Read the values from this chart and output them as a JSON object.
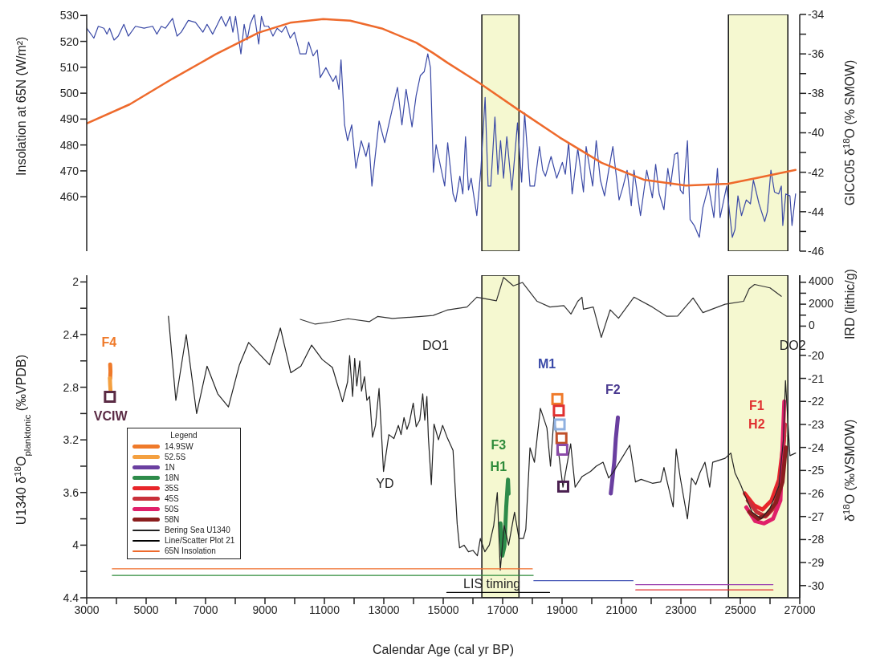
{
  "chart_data": [
    {
      "type": "line",
      "ylabel": "Insolation at 65N (W/m²)",
      "y2label": "GICC05 δ$^{18}$O (% SMOW)",
      "tick_labels": "y",
      "xlim": [
        3000,
        27000
      ],
      "ylim": [
        439,
        530.4
      ],
      "yticks": [
        460,
        470,
        480,
        490,
        500,
        510,
        520,
        530
      ],
      "y2lim": [
        -46,
        -34
      ],
      "y2ticks": [
        -46,
        {
          "value": -45,
          "label": null
        },
        -44,
        {
          "value": -43,
          "label": null
        },
        -42,
        {
          "value": -41,
          "label": null
        },
        -40,
        {
          "value": -39,
          "label": null
        },
        -38,
        {
          "value": -37,
          "label": null
        },
        -36,
        {
          "value": -35,
          "label": null
        },
        -34
      ],
      "bands": [
        {
          "axis": "x",
          "from": 16300,
          "to": 17550,
          "color": "#f5f8d0"
        },
        {
          "axis": "x",
          "from": 24600,
          "to": 26600,
          "color": "#f5f8d0"
        }
      ],
      "series": [
        {
          "color": "#3a49a6",
          "axis": "y2",
          "x": [
            3000,
            3240,
            3390,
            3580,
            3680,
            3770,
            3920,
            4060,
            4250,
            4400,
            4640,
            4930,
            5220,
            5360,
            5510,
            5650,
            5890,
            6040,
            6180,
            6420,
            6660,
            6910,
            7050,
            7240,
            7530,
            7680,
            7820,
            7920,
            8010,
            8190,
            8300,
            8400,
            8500,
            8640,
            8790,
            8880,
            8980,
            9120,
            9270,
            9410,
            9560,
            9700,
            9850,
            9990,
            10180,
            10380,
            10470,
            10620,
            10760,
            10860,
            11050,
            11290,
            11390,
            11490,
            11560,
            11680,
            11780,
            11920,
            12060,
            12240,
            12400,
            12500,
            12600,
            12840,
            13030,
            13270,
            13460,
            13610,
            13750,
            13950,
            14090,
            14230,
            14360,
            14480,
            14570,
            14670,
            14760,
            14910,
            15050,
            15150,
            15330,
            15420,
            15560,
            15660,
            15750,
            15850,
            15940,
            16130,
            16270,
            16410,
            16510,
            16600,
            16740,
            16840,
            16930,
            17030,
            17140,
            17310,
            17500,
            17640,
            17740,
            17920,
            18070,
            18240,
            18350,
            18440,
            18630,
            18820,
            19010,
            19110,
            19220,
            19340,
            19530,
            19720,
            19810,
            20030,
            20150,
            20290,
            20430,
            20570,
            20710,
            20920,
            21040,
            21190,
            21330,
            21420,
            21640,
            21850,
            22040,
            22150,
            22270,
            22430,
            22560,
            22650,
            22790,
            22890,
            22980,
            23080,
            23220,
            23310,
            23450,
            23620,
            23740,
            23930,
            24110,
            24230,
            24320,
            24540,
            24730,
            24820,
            24920,
            25040,
            25200,
            25340,
            25440,
            25630,
            25820,
            25910,
            26030,
            26150,
            26290,
            26380,
            26430,
            26530,
            26670,
            26740,
            26860
          ],
          "values": [
            -34.7,
            -35.2,
            -34.6,
            -34.7,
            -35.0,
            -34.7,
            -35.3,
            -35.1,
            -34.5,
            -35.1,
            -34.6,
            -34.7,
            -34.6,
            -35.0,
            -34.6,
            -34.7,
            -34.2,
            -35.1,
            -34.9,
            -34.3,
            -34.4,
            -34.9,
            -34.5,
            -35.0,
            -34.1,
            -34.6,
            -34.1,
            -34.9,
            -34.1,
            -36.0,
            -34.5,
            -35.3,
            -34.5,
            -34.0,
            -35.5,
            -34.1,
            -34.6,
            -34.6,
            -35.1,
            -34.7,
            -34.9,
            -34.6,
            -35.2,
            -34.9,
            -36.0,
            -36.0,
            -35.4,
            -36.1,
            -35.8,
            -37.2,
            -36.7,
            -37.4,
            -37.1,
            -37.8,
            -36.3,
            -39.6,
            -40.4,
            -39.6,
            -41.8,
            -40.4,
            -41.2,
            -40.5,
            -42.7,
            -39.4,
            -40.5,
            -38.9,
            -37.7,
            -39.6,
            -37.8,
            -39.7,
            -38.1,
            -37.1,
            -36.9,
            -36.0,
            -36.7,
            -42.0,
            -40.6,
            -41.7,
            -42.7,
            -40.5,
            -43.1,
            -43.5,
            -42.2,
            -43.1,
            -40.2,
            -42.9,
            -42.3,
            -44.2,
            -41.8,
            -38.2,
            -42.7,
            -42.7,
            -39.2,
            -42.1,
            -40.4,
            -42.3,
            -40.2,
            -42.9,
            -39.5,
            -42.5,
            -39.0,
            -42.7,
            -42.7,
            -40.7,
            -41.9,
            -42.2,
            -41.2,
            -42.3,
            -41.5,
            -42.1,
            -40.5,
            -43.1,
            -40.8,
            -43.0,
            -40.7,
            -42.7,
            -40.4,
            -42.4,
            -43.2,
            -41.9,
            -40.7,
            -43.4,
            -42.8,
            -41.9,
            -43.7,
            -41.9,
            -44.2,
            -41.9,
            -43.3,
            -41.6,
            -43.1,
            -43.9,
            -41.8,
            -42.7,
            -41.1,
            -41.0,
            -42.9,
            -43.1,
            -40.4,
            -44.4,
            -44.7,
            -45.3,
            -43.8,
            -42.7,
            -44.3,
            -41.8,
            -44.3,
            -42.7,
            -45.3,
            -44.9,
            -43.2,
            -44.2,
            -43.4,
            -43.6,
            -42.4,
            -43.6,
            -44.5,
            -44.0,
            -41.9,
            -43.0,
            -43.1,
            -42.7,
            -44.7,
            -43.1,
            -43.2,
            -44.7,
            -43.1
          ]
        },
        {
          "name": "65N Insolation",
          "color": "#ee6a2c",
          "axis": "y",
          "x": [
            3000,
            4450,
            5890,
            7340,
            8790,
            9850,
            10960,
            11870,
            12930,
            14090,
            14660,
            15150,
            16220,
            17500,
            18920,
            20330,
            21750,
            23170,
            24590,
            25530,
            26860
          ],
          "values": [
            488.3,
            495.7,
            505.6,
            515.0,
            523.4,
            527.2,
            528.6,
            528.0,
            525.0,
            519.5,
            515.5,
            511.7,
            503.9,
            493.8,
            482.9,
            473.1,
            466.6,
            464.3,
            465.0,
            467.2,
            470.4
          ]
        }
      ]
    },
    {
      "type": "line",
      "xlabel": "Calendar Age (cal yr BP)",
      "ylabel": "U1340 δ$^{18}$O$_{planktonic}$ (‰VPDB)",
      "y2label": "δ$^{18}$O (‰VSMOW)",
      "y3label": "IRD (lithic/g)",
      "legend": "bottom left",
      "legend_title": "Legend",
      "xlim": [
        3000,
        27000
      ],
      "xticks": [
        3000,
        {
          "value": 4000,
          "label": null
        },
        5000,
        {
          "value": 6000,
          "label": null
        },
        7000,
        {
          "value": 8000,
          "label": null
        },
        9000,
        {
          "value": 10000,
          "label": null
        },
        11000,
        {
          "value": 12000,
          "label": null
        },
        13000,
        {
          "value": 14000,
          "label": null
        },
        15000,
        {
          "value": 16000,
          "label": null
        },
        17000,
        {
          "value": 18000,
          "label": null
        },
        19000,
        {
          "value": 20000,
          "label": null
        },
        21000,
        {
          "value": 22000,
          "label": null
        },
        23000,
        {
          "value": 24000,
          "label": null
        },
        25000,
        {
          "value": 26000,
          "label": null
        },
        27000
      ],
      "ylim": [
        4.4,
        1.949
      ],
      "yticks": [
        2,
        {
          "value": 2.2,
          "label": null
        },
        2.4,
        {
          "value": 2.6,
          "label": null
        },
        2.8,
        {
          "value": 3,
          "label": null
        },
        3.2,
        {
          "value": 3.4,
          "label": null
        },
        3.6,
        {
          "value": 3.8,
          "label": null
        },
        4,
        {
          "value": 4.2,
          "label": null
        },
        4.4
      ],
      "y2lim": [
        -30.53,
        -16.52
      ],
      "y2ticks": [
        -30,
        -29,
        -28,
        -27,
        -26,
        -25,
        -24,
        -23,
        -22,
        -21,
        -20
      ],
      "y3lim": [
        -24770,
        4640
      ],
      "y3ticks": [
        0,
        {
          "value": 1000,
          "label": null
        },
        2000,
        {
          "value": 3000,
          "label": null
        },
        4000
      ],
      "bands": [
        {
          "axis": "x",
          "from": 16300,
          "to": 17550,
          "color": "#f5f8d0"
        },
        {
          "axis": "x",
          "from": 24600,
          "to": 26600,
          "color": "#f5f8d0"
        }
      ],
      "annotations": [
        "F4",
        "VCIW",
        "DO1",
        "YD",
        "M1",
        "F2",
        "F3",
        "H1",
        "F1",
        "H2",
        "DO2",
        "LIS timing"
      ],
      "series": [
        {
          "name": "14.9SW",
          "color": "#ef7a2a",
          "axis": "y2",
          "x": [
            3790,
            3800,
            3790
          ],
          "values": [
            -20.4,
            -20.7,
            -21.0
          ]
        },
        {
          "name": "52.5S",
          "color": "#f4a040",
          "axis": "y2",
          "x": [
            3780,
            3790,
            3800
          ],
          "values": [
            -21.0,
            -21.3,
            -21.5
          ]
        },
        {
          "name": "1N",
          "color": "#6a3fa0",
          "axis": "y2",
          "x": [
            20640,
            20760,
            20810,
            20880
          ],
          "values": [
            -26.0,
            -24.6,
            -23.6,
            -22.7
          ]
        },
        {
          "name": "18N",
          "color": "#2e8b4a",
          "axis": "y2",
          "x": [
            16930,
            16990,
            17060,
            17120,
            17180,
            17200
          ],
          "values": [
            -27.3,
            -28.7,
            -28.3,
            -26.6,
            -25.4,
            -26.0
          ]
        },
        {
          "name": "35S",
          "color": "#e8252a",
          "axis": "y2",
          "x": [
            25150,
            25450,
            25750,
            26050,
            26300,
            26480
          ],
          "values": [
            -26.0,
            -26.5,
            -26.7,
            -26.3,
            -25.4,
            -23.5
          ]
        },
        {
          "name": "45S",
          "color": "#c8303a",
          "axis": "y2",
          "x": [
            25250,
            25550,
            25850,
            26150,
            26400,
            26500
          ],
          "values": [
            -26.3,
            -26.8,
            -27.0,
            -26.6,
            -25.0,
            -23.0
          ]
        },
        {
          "name": "50S",
          "color": "#e0206a",
          "axis": "y2",
          "x": [
            25200,
            25500,
            25800,
            26100,
            26350,
            26480
          ],
          "values": [
            -26.6,
            -27.2,
            -27.3,
            -27.1,
            -26.3,
            -22.0
          ]
        },
        {
          "name": "58N",
          "color": "#8b1e1e",
          "axis": "y2",
          "x": [
            25300,
            25600,
            25900,
            26200,
            26420,
            26530
          ],
          "values": [
            -26.8,
            -27.1,
            -26.9,
            -26.4,
            -25.5,
            -24.0
          ]
        },
        {
          "type": "scatter",
          "marker": "square",
          "axis": "y2",
          "x": [
            3780,
            18840,
            18890,
            18920,
            18980,
            19010,
            19040
          ],
          "values": [
            -21.8,
            -21.9,
            -22.4,
            -23.0,
            -23.6,
            -24.1,
            -25.7
          ],
          "colors": [
            "#5a2a44",
            "#ef7a2a",
            "#e03030",
            "#8fb0e0",
            "#c0502a",
            "#8a4aa8",
            "#4a2050"
          ]
        },
        {
          "name": "Bering Sea U1340",
          "color": "#222222",
          "axis": "y",
          "x": [
            5750,
            6000,
            6350,
            6700,
            7050,
            7410,
            7770,
            8140,
            8450,
            9150,
            9520,
            9870,
            10210,
            10570,
            10930,
            11270,
            11610,
            11780,
            11850,
            11950,
            12020,
            12090,
            12190,
            12250,
            12350,
            12430,
            12520,
            12620,
            12720,
            12840,
            12990,
            13170,
            13340,
            13490,
            13580,
            13680,
            13780,
            13870,
            13990,
            14090,
            14210,
            14310,
            14380,
            14450,
            14500,
            14600,
            14690,
            14840,
            14980,
            15130,
            15330,
            15470,
            15550,
            15700,
            15850,
            16000,
            16150,
            16250,
            16400,
            16550,
            16700,
            16820,
            16920,
            17050,
            17200,
            17400,
            17550,
            17700,
            17780,
            17920,
            18070,
            18270,
            18490,
            18610,
            18730,
            19030,
            19290,
            19440,
            19670,
            19960,
            20150,
            20380,
            20570,
            20710,
            21280,
            21470,
            21660,
            22040,
            22320,
            22430,
            22560,
            22740,
            22840,
            22980,
            23220,
            23360,
            23500,
            23640,
            23810,
            23970,
            24070,
            24490,
            24680,
            24820,
            25010,
            25150,
            25400,
            25700,
            26000,
            26300,
            26450,
            26520,
            26670,
            26860
          ],
          "values": [
            2.26,
            2.9,
            2.4,
            3.0,
            2.64,
            2.85,
            2.95,
            2.63,
            2.46,
            2.63,
            2.35,
            2.69,
            2.64,
            2.48,
            2.59,
            2.65,
            2.91,
            2.76,
            2.56,
            2.87,
            2.58,
            2.79,
            2.6,
            2.83,
            2.72,
            2.9,
            2.87,
            3.18,
            3.09,
            2.81,
            3.44,
            3.16,
            3.19,
            3.09,
            3.16,
            3.03,
            3.12,
            3.06,
            2.92,
            3.1,
            3.05,
            2.85,
            3.05,
            2.87,
            3.18,
            3.54,
            3.08,
            3.2,
            3.09,
            3.18,
            3.28,
            3.84,
            4.02,
            4.0,
            4.05,
            4.04,
            4.08,
            3.95,
            4.05,
            4.0,
            3.85,
            3.6,
            4.19,
            3.85,
            4.0,
            3.75,
            3.95,
            3.95,
            3.88,
            3.26,
            3.37,
            2.96,
            3.11,
            3.4,
            3.02,
            3.56,
            3.23,
            3.56,
            3.48,
            3.44,
            3.4,
            3.37,
            3.49,
            3.45,
            3.24,
            3.52,
            3.5,
            3.53,
            3.52,
            3.41,
            3.54,
            3.71,
            3.27,
            3.49,
            3.8,
            3.49,
            3.54,
            3.45,
            3.37,
            3.56,
            3.37,
            3.34,
            3.3,
            3.45,
            3.54,
            3.62,
            3.75,
            3.8,
            3.72,
            3.55,
            3.2,
            2.75,
            3.32,
            3.3
          ]
        },
        {
          "color": "#333333",
          "axis": "y3",
          "x": [
            10190,
            10690,
            11170,
            11800,
            12520,
            12790,
            13290,
            14260,
            14660,
            15130,
            15800,
            16130,
            16790,
            17030,
            17360,
            17670,
            18160,
            18590,
            19060,
            19300,
            19530,
            19670,
            19720,
            20050,
            20320,
            20620,
            20900,
            21420,
            22040,
            22510,
            22890,
            23410,
            23740,
            24490,
            25110,
            25300,
            25480,
            26000,
            26380
          ],
          "values": [
            620,
            180,
            360,
            670,
            410,
            880,
            700,
            880,
            970,
            1460,
            1740,
            2640,
            2310,
            4440,
            3670,
            3980,
            2260,
            1740,
            1870,
            1100,
            2260,
            2640,
            1540,
            1740,
            -1030,
            1490,
            720,
            2640,
            1740,
            900,
            920,
            2560,
            1230,
            2000,
            2260,
            3410,
            3800,
            3490,
            2720
          ]
        },
        {
          "color": "#ef6f2c",
          "axis": "y",
          "x": [
            3860,
            18000
          ],
          "values": [
            4.18,
            4.18
          ]
        },
        {
          "color": "#2e8b3a",
          "axis": "y",
          "x": [
            3860,
            18030
          ],
          "values": [
            4.23,
            4.23
          ]
        },
        {
          "color": "#4a5ab8",
          "axis": "y",
          "x": [
            18050,
            21390
          ],
          "values": [
            4.27,
            4.27
          ]
        },
        {
          "color": "#9a40b0",
          "axis": "y",
          "x": [
            21480,
            26100
          ],
          "values": [
            4.3,
            4.3
          ]
        },
        {
          "color": "#e03030",
          "axis": "y",
          "x": [
            21480,
            26100
          ],
          "values": [
            4.34,
            4.34
          ]
        },
        {
          "name": "Line/Scatter Plot 21",
          "color": "#000000",
          "axis": "y",
          "x": [
            15120,
            18580
          ],
          "values": [
            4.36,
            4.36
          ]
        }
      ]
    }
  ]
}
